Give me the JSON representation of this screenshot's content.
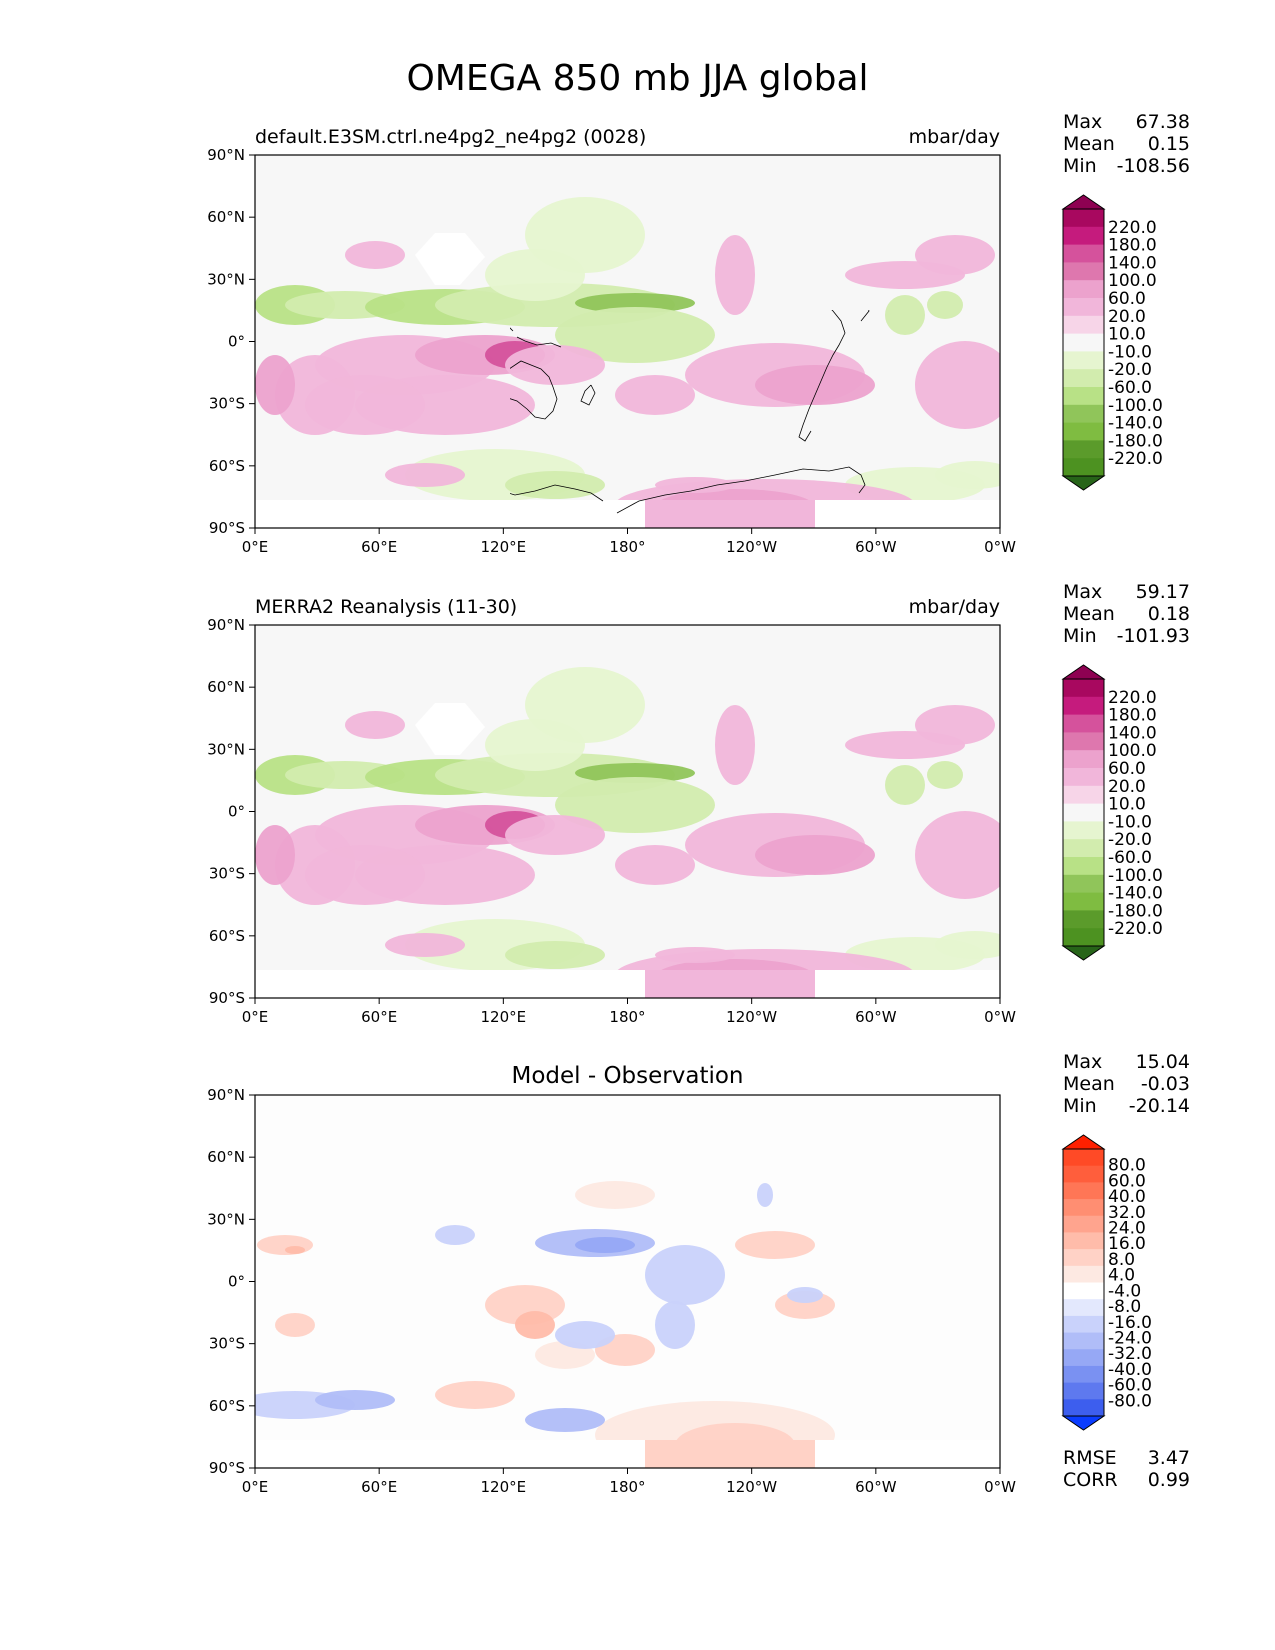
{
  "figure": {
    "title": "OMEGA 850 mb JJA global"
  },
  "axes": {
    "lat_ticks": [
      "90°N",
      "60°N",
      "30°N",
      "0°",
      "30°S",
      "60°S",
      "90°S"
    ],
    "lon_ticks": [
      "0°E",
      "60°E",
      "120°E",
      "180°",
      "120°W",
      "60°W",
      "0°W"
    ]
  },
  "panels": [
    {
      "title": "default.E3SM.ctrl.ne4pg2_ne4pg2 (0028)",
      "units": "mbar/day",
      "stats": {
        "max_label": "Max",
        "max": "67.38",
        "mean_label": "Mean",
        "mean": "0.15",
        "min_label": "Min",
        "min": "-108.56"
      }
    },
    {
      "title": "MERRA2 Reanalysis (11-30)",
      "units": "mbar/day",
      "stats": {
        "max_label": "Max",
        "max": "59.17",
        "mean_label": "Mean",
        "mean": "0.18",
        "min_label": "Min",
        "min": "-101.93"
      }
    },
    {
      "title": "Model - Observation",
      "units": "",
      "stats": {
        "max_label": "Max",
        "max": "15.04",
        "mean_label": "Mean",
        "mean": "-0.03",
        "min_label": "Min",
        "min": "-20.14"
      },
      "metrics": {
        "rmse_label": "RMSE",
        "rmse": "3.47",
        "corr_label": "CORR",
        "corr": "0.99"
      }
    }
  ],
  "colorbars": {
    "field": {
      "labels": [
        "220.0",
        "180.0",
        "140.0",
        "100.0",
        "60.0",
        "20.0",
        "10.0",
        "-10.0",
        "-20.0",
        "-60.0",
        "-100.0",
        "-140.0",
        "-180.0",
        "-220.0"
      ],
      "colors": [
        "#8e0152",
        "#a8085f",
        "#c51b7d",
        "#d5529c",
        "#de77ae",
        "#eca2cd",
        "#f1b6da",
        "#f7d5e8",
        "#f7f7f7",
        "#e6f5d0",
        "#d2ecae",
        "#b8e186",
        "#90c55a",
        "#7fbc41",
        "#5b9b2b",
        "#4d9221",
        "#276419"
      ]
    },
    "diff": {
      "labels": [
        "80.0",
        "60.0",
        "40.0",
        "32.0",
        "24.0",
        "16.0",
        "8.0",
        "4.0",
        "-4.0",
        "-8.0",
        "-16.0",
        "-24.0",
        "-32.0",
        "-40.0",
        "-60.0",
        "-80.0"
      ],
      "colors": [
        "#ff2000",
        "#ff4a26",
        "#ff5e3c",
        "#ff7656",
        "#ff8e72",
        "#ffa48e",
        "#ffbcaa",
        "#ffd2c6",
        "#fde9e2",
        "#ffffff",
        "#e3e8fd",
        "#c9d2fb",
        "#b0bdf8",
        "#96a8f5",
        "#7a91f2",
        "#5e79ef",
        "#3d5eee",
        "#0a3cff"
      ]
    }
  }
}
